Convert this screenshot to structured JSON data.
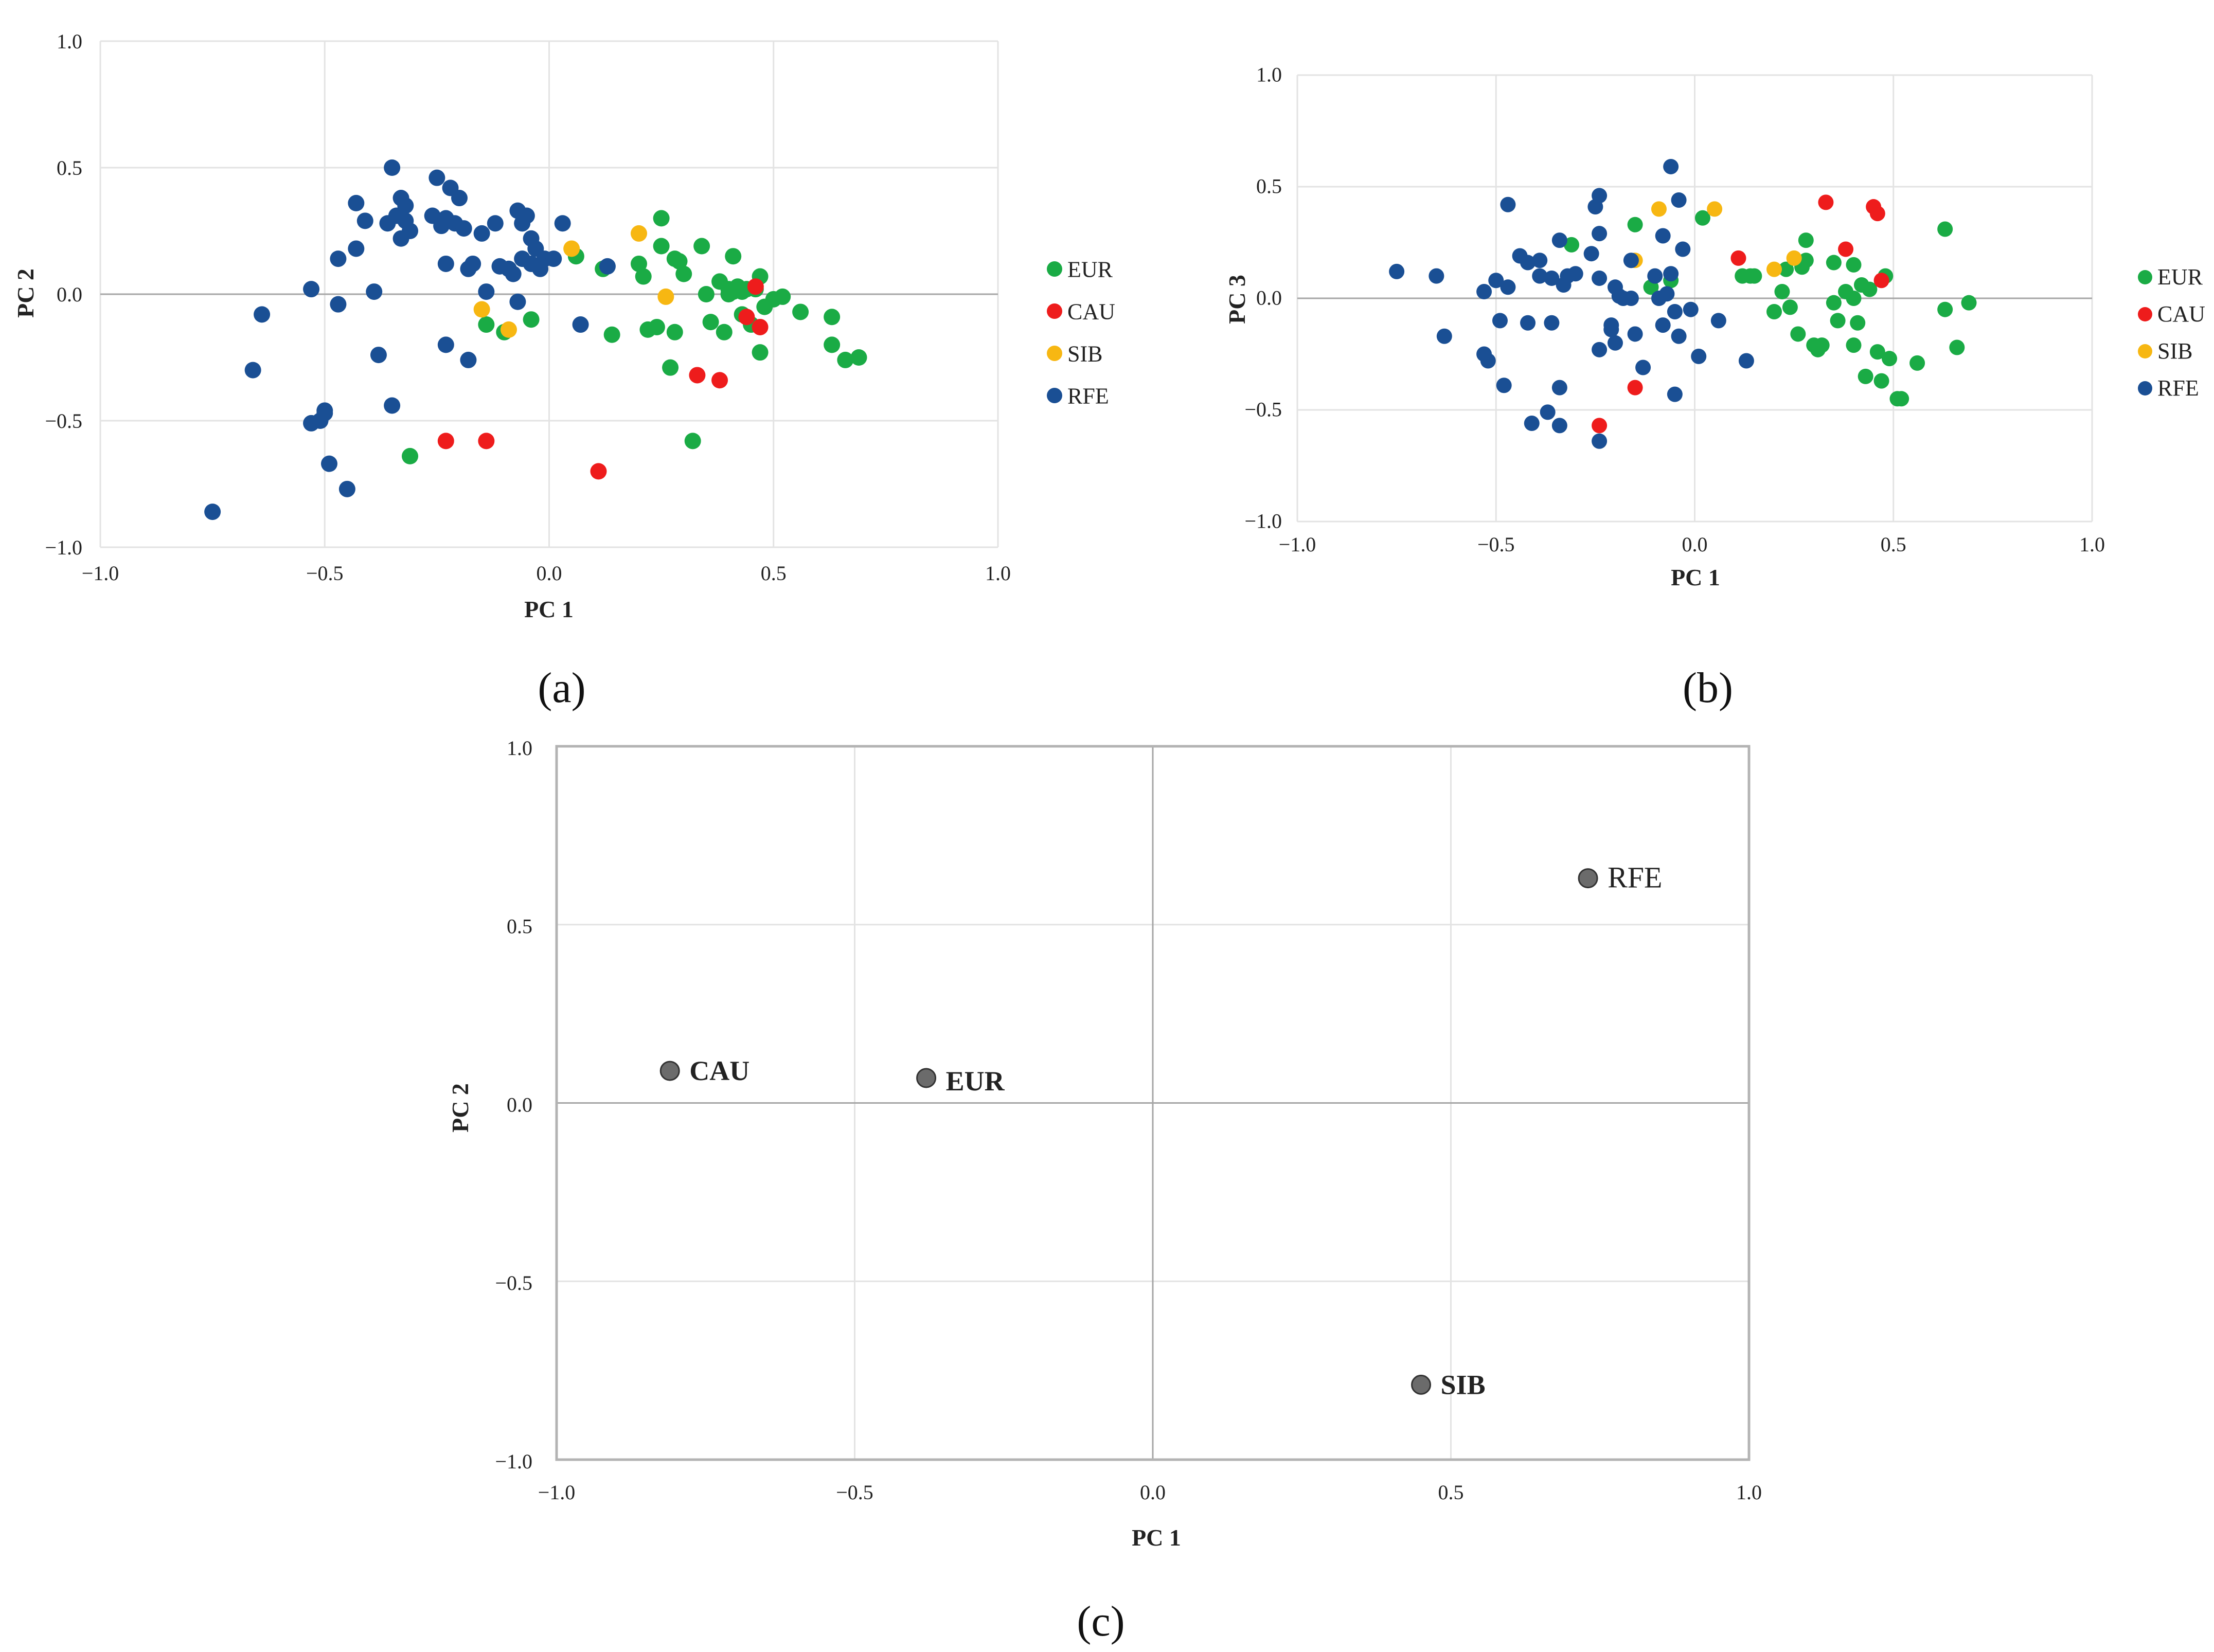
{
  "colors": {
    "EUR": "#1aab45",
    "CAU": "#ee1c1c",
    "SIB": "#f7b712",
    "RFE": "#1a4f94",
    "centroid": "#6b6b6b"
  },
  "chart_data": [
    {
      "type": "scatter",
      "panel_label": "(a)",
      "xlabel": "PC 1",
      "ylabel": "PC 2",
      "xlim": [
        -1.0,
        1.0
      ],
      "ylim": [
        -1.0,
        1.0
      ],
      "xticks": [
        "−1.0",
        "−0.5",
        "0.0",
        "0.5",
        "1.0"
      ],
      "yticks": [
        "−1.0",
        "−0.5",
        "0.0",
        "0.5",
        "1.0"
      ],
      "legend": [
        "EUR",
        "CAU",
        "SIB",
        "RFE"
      ],
      "series": [
        {
          "name": "EUR",
          "points": [
            [
              -0.31,
              -0.64
            ],
            [
              -0.14,
              -0.12
            ],
            [
              -0.1,
              -0.15
            ],
            [
              -0.04,
              -0.1
            ],
            [
              0.06,
              0.15
            ],
            [
              0.12,
              0.1
            ],
            [
              0.14,
              -0.16
            ],
            [
              0.2,
              0.12
            ],
            [
              0.21,
              0.07
            ],
            [
              0.22,
              -0.14
            ],
            [
              0.24,
              -0.13
            ],
            [
              0.25,
              0.3
            ],
            [
              0.25,
              0.19
            ],
            [
              0.27,
              -0.29
            ],
            [
              0.28,
              -0.15
            ],
            [
              0.28,
              0.14
            ],
            [
              0.29,
              0.13
            ],
            [
              0.3,
              0.08
            ],
            [
              0.32,
              -0.58
            ],
            [
              0.34,
              0.19
            ],
            [
              0.35,
              0.0
            ],
            [
              0.36,
              -0.11
            ],
            [
              0.38,
              0.05
            ],
            [
              0.39,
              -0.15
            ],
            [
              0.4,
              0.02
            ],
            [
              0.41,
              0.15
            ],
            [
              0.41,
              0.01
            ],
            [
              0.42,
              0.03
            ],
            [
              0.43,
              -0.08
            ],
            [
              0.44,
              0.02
            ],
            [
              0.45,
              -0.12
            ],
            [
              0.46,
              0.02
            ],
            [
              0.47,
              0.07
            ],
            [
              0.47,
              -0.23
            ],
            [
              0.48,
              -0.05
            ],
            [
              0.5,
              -0.02
            ],
            [
              0.52,
              -0.01
            ],
            [
              0.56,
              -0.07
            ],
            [
              0.63,
              -0.09
            ],
            [
              0.63,
              -0.2
            ],
            [
              0.66,
              -0.26
            ],
            [
              0.69,
              -0.25
            ],
            [
              0.43,
              0.01
            ],
            [
              0.4,
              0.0
            ]
          ]
        },
        {
          "name": "CAU",
          "points": [
            [
              -0.23,
              -0.58
            ],
            [
              -0.14,
              -0.58
            ],
            [
              0.11,
              -0.7
            ],
            [
              0.33,
              -0.32
            ],
            [
              0.38,
              -0.34
            ],
            [
              0.44,
              -0.09
            ],
            [
              0.46,
              0.03
            ],
            [
              0.47,
              -0.13
            ]
          ]
        },
        {
          "name": "SIB",
          "points": [
            [
              -0.15,
              -0.06
            ],
            [
              -0.09,
              -0.14
            ],
            [
              0.05,
              0.18
            ],
            [
              0.2,
              0.24
            ],
            [
              0.26,
              -0.01
            ]
          ]
        },
        {
          "name": "RFE",
          "points": [
            [
              -0.75,
              -0.86
            ],
            [
              -0.66,
              -0.3
            ],
            [
              -0.64,
              -0.08
            ],
            [
              -0.53,
              0.02
            ],
            [
              -0.53,
              -0.51
            ],
            [
              -0.51,
              -0.5
            ],
            [
              -0.5,
              -0.46
            ],
            [
              -0.5,
              -0.47
            ],
            [
              -0.49,
              -0.67
            ],
            [
              -0.47,
              0.14
            ],
            [
              -0.47,
              -0.04
            ],
            [
              -0.45,
              -0.77
            ],
            [
              -0.43,
              0.36
            ],
            [
              -0.43,
              0.18
            ],
            [
              -0.41,
              0.29
            ],
            [
              -0.39,
              0.01
            ],
            [
              -0.38,
              -0.24
            ],
            [
              -0.36,
              0.28
            ],
            [
              -0.35,
              0.5
            ],
            [
              -0.35,
              -0.44
            ],
            [
              -0.34,
              0.31
            ],
            [
              -0.33,
              0.38
            ],
            [
              -0.33,
              0.22
            ],
            [
              -0.32,
              0.35
            ],
            [
              -0.32,
              0.29
            ],
            [
              -0.31,
              0.25
            ],
            [
              -0.26,
              0.31
            ],
            [
              -0.25,
              0.46
            ],
            [
              -0.24,
              0.27
            ],
            [
              -0.23,
              0.12
            ],
            [
              -0.23,
              0.3
            ],
            [
              -0.23,
              -0.2
            ],
            [
              -0.22,
              0.42
            ],
            [
              -0.21,
              0.28
            ],
            [
              -0.2,
              0.38
            ],
            [
              -0.19,
              0.26
            ],
            [
              -0.18,
              0.1
            ],
            [
              -0.18,
              -0.26
            ],
            [
              -0.17,
              0.12
            ],
            [
              -0.15,
              0.24
            ],
            [
              -0.14,
              0.01
            ],
            [
              -0.12,
              0.28
            ],
            [
              -0.11,
              0.11
            ],
            [
              -0.09,
              0.1
            ],
            [
              -0.08,
              0.08
            ],
            [
              -0.07,
              0.33
            ],
            [
              -0.07,
              -0.03
            ],
            [
              -0.06,
              0.28
            ],
            [
              -0.06,
              0.14
            ],
            [
              -0.05,
              0.31
            ],
            [
              -0.04,
              0.22
            ],
            [
              -0.04,
              0.12
            ],
            [
              -0.03,
              0.18
            ],
            [
              -0.02,
              0.1
            ],
            [
              -0.01,
              0.14
            ],
            [
              0.01,
              0.14
            ],
            [
              0.03,
              0.28
            ],
            [
              0.07,
              -0.12
            ],
            [
              0.13,
              0.11
            ]
          ]
        }
      ]
    },
    {
      "type": "scatter",
      "panel_label": "(b)",
      "xlabel": "PC 1",
      "ylabel": "PC 3",
      "xlim": [
        -1.0,
        1.0
      ],
      "ylim": [
        -1.0,
        1.0
      ],
      "xticks": [
        "−1.0",
        "−0.5",
        "0.0",
        "0.5",
        "1.0"
      ],
      "yticks": [
        "−1.0",
        "−0.5",
        "0.0",
        "0.5",
        "1.0"
      ],
      "legend": [
        "EUR",
        "CAU",
        "SIB",
        "RFE"
      ],
      "series": [
        {
          "name": "EUR",
          "points": [
            [
              -0.31,
              0.24
            ],
            [
              -0.15,
              0.33
            ],
            [
              -0.11,
              0.05
            ],
            [
              -0.06,
              0.08
            ],
            [
              0.02,
              0.36
            ],
            [
              0.12,
              0.1
            ],
            [
              0.14,
              0.1
            ],
            [
              0.2,
              -0.06
            ],
            [
              0.22,
              0.03
            ],
            [
              0.23,
              0.13
            ],
            [
              0.24,
              -0.04
            ],
            [
              0.26,
              -0.16
            ],
            [
              0.28,
              0.26
            ],
            [
              0.28,
              0.17
            ],
            [
              0.3,
              -0.21
            ],
            [
              0.31,
              -0.23
            ],
            [
              0.32,
              -0.21
            ],
            [
              0.35,
              0.16
            ],
            [
              0.35,
              -0.02
            ],
            [
              0.36,
              -0.1
            ],
            [
              0.38,
              0.03
            ],
            [
              0.4,
              0.15
            ],
            [
              0.4,
              -0.21
            ],
            [
              0.4,
              0.0
            ],
            [
              0.41,
              -0.11
            ],
            [
              0.42,
              0.06
            ],
            [
              0.43,
              -0.35
            ],
            [
              0.44,
              0.04
            ],
            [
              0.46,
              -0.24
            ],
            [
              0.47,
              -0.37
            ],
            [
              0.48,
              0.1
            ],
            [
              0.49,
              -0.27
            ],
            [
              0.51,
              -0.45
            ],
            [
              0.52,
              -0.45
            ],
            [
              0.56,
              -0.29
            ],
            [
              0.63,
              0.31
            ],
            [
              0.63,
              -0.05
            ],
            [
              0.66,
              -0.22
            ],
            [
              0.69,
              -0.02
            ],
            [
              0.27,
              0.14
            ],
            [
              0.15,
              0.1
            ]
          ]
        },
        {
          "name": "CAU",
          "points": [
            [
              -0.24,
              -0.57
            ],
            [
              -0.15,
              -0.4
            ],
            [
              0.11,
              0.18
            ],
            [
              0.33,
              0.43
            ],
            [
              0.38,
              0.22
            ],
            [
              0.45,
              0.41
            ],
            [
              0.46,
              0.38
            ],
            [
              0.47,
              0.08
            ]
          ]
        },
        {
          "name": "SIB",
          "points": [
            [
              -0.15,
              0.17
            ],
            [
              -0.09,
              0.4
            ],
            [
              0.05,
              0.4
            ],
            [
              0.2,
              0.13
            ],
            [
              0.25,
              0.18
            ]
          ]
        },
        {
          "name": "RFE",
          "points": [
            [
              -0.75,
              0.12
            ],
            [
              -0.65,
              0.1
            ],
            [
              -0.63,
              -0.17
            ],
            [
              -0.53,
              0.03
            ],
            [
              -0.53,
              -0.25
            ],
            [
              -0.52,
              -0.28
            ],
            [
              -0.5,
              0.08
            ],
            [
              -0.49,
              -0.1
            ],
            [
              -0.48,
              -0.39
            ],
            [
              -0.47,
              0.42
            ],
            [
              -0.47,
              0.05
            ],
            [
              -0.44,
              0.19
            ],
            [
              -0.42,
              0.16
            ],
            [
              -0.42,
              -0.11
            ],
            [
              -0.41,
              -0.56
            ],
            [
              -0.39,
              0.17
            ],
            [
              -0.39,
              0.1
            ],
            [
              -0.37,
              -0.51
            ],
            [
              -0.36,
              0.09
            ],
            [
              -0.36,
              -0.11
            ],
            [
              -0.34,
              0.26
            ],
            [
              -0.34,
              -0.57
            ],
            [
              -0.34,
              -0.4
            ],
            [
              -0.33,
              0.06
            ],
            [
              -0.32,
              0.1
            ],
            [
              -0.3,
              0.11
            ],
            [
              -0.26,
              0.2
            ],
            [
              -0.25,
              0.41
            ],
            [
              -0.24,
              0.46
            ],
            [
              -0.24,
              0.29
            ],
            [
              -0.24,
              0.09
            ],
            [
              -0.24,
              -0.23
            ],
            [
              -0.24,
              -0.64
            ],
            [
              -0.21,
              -0.12
            ],
            [
              -0.21,
              -0.14
            ],
            [
              -0.2,
              0.05
            ],
            [
              -0.2,
              -0.2
            ],
            [
              -0.19,
              0.01
            ],
            [
              -0.18,
              0.0
            ],
            [
              -0.16,
              0.17
            ],
            [
              -0.16,
              0.0
            ],
            [
              -0.15,
              -0.16
            ],
            [
              -0.13,
              -0.31
            ],
            [
              -0.1,
              0.1
            ],
            [
              -0.09,
              0.0
            ],
            [
              -0.08,
              0.28
            ],
            [
              -0.08,
              -0.12
            ],
            [
              -0.07,
              0.02
            ],
            [
              -0.06,
              0.59
            ],
            [
              -0.06,
              0.11
            ],
            [
              -0.05,
              -0.43
            ],
            [
              -0.05,
              -0.06
            ],
            [
              -0.04,
              0.44
            ],
            [
              -0.04,
              -0.17
            ],
            [
              -0.03,
              0.22
            ],
            [
              -0.01,
              -0.05
            ],
            [
              0.01,
              -0.26
            ],
            [
              0.06,
              -0.1
            ],
            [
              0.13,
              -0.28
            ]
          ]
        }
      ]
    },
    {
      "type": "scatter",
      "panel_label": "(c)",
      "xlabel": "PC 1",
      "ylabel": "PC 2",
      "xlim": [
        -1.0,
        1.0
      ],
      "ylim": [
        -1.0,
        1.0
      ],
      "xticks": [
        "−1.0",
        "−0.5",
        "0.0",
        "0.5",
        "1.0"
      ],
      "yticks": [
        "−1.0",
        "−0.5",
        "0.0",
        "0.5",
        "1.0"
      ],
      "points": [
        {
          "label": "CAU",
          "x": -0.81,
          "y": 0.09
        },
        {
          "label": "EUR",
          "x": -0.38,
          "y": 0.07
        },
        {
          "label": "RFE",
          "x": 0.73,
          "y": 0.63
        },
        {
          "label": "SIB",
          "x": 0.45,
          "y": -0.79
        }
      ]
    }
  ]
}
